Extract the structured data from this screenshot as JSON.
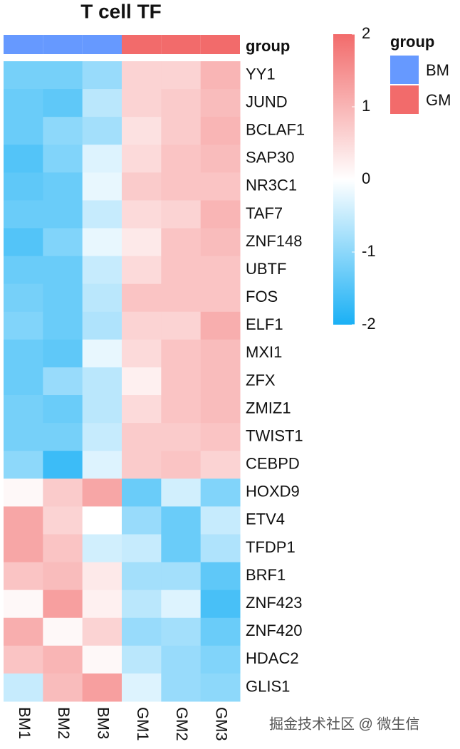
{
  "chart_data": {
    "type": "heatmap",
    "title": "T cell TF",
    "columns": [
      "BM1",
      "BM2",
      "BM3",
      "GM1",
      "GM2",
      "GM3"
    ],
    "rows": [
      "YY1",
      "JUND",
      "BCLAF1",
      "SAP30",
      "NR3C1",
      "TAF7",
      "ZNF148",
      "UBTF",
      "FOS",
      "ELF1",
      "MXI1",
      "ZFX",
      "ZMIZ1",
      "TWIST1",
      "CEBPD",
      "HOXD9",
      "ETV4",
      "TFDP1",
      "BRF1",
      "ZNF423",
      "ZNF420",
      "HDAC2",
      "GLIS1"
    ],
    "values": [
      [
        -1.2,
        -1.2,
        -0.9,
        0.6,
        0.6,
        1.0
      ],
      [
        -1.3,
        -1.4,
        -0.6,
        0.6,
        0.7,
        0.9
      ],
      [
        -1.3,
        -1.0,
        -0.8,
        0.4,
        0.7,
        1.0
      ],
      [
        -1.5,
        -1.1,
        -0.3,
        0.5,
        0.8,
        0.9
      ],
      [
        -1.4,
        -1.3,
        -0.2,
        0.7,
        0.8,
        0.8
      ],
      [
        -1.3,
        -1.3,
        -0.5,
        0.5,
        0.6,
        1.0
      ],
      [
        -1.5,
        -1.1,
        -0.2,
        0.3,
        0.8,
        0.9
      ],
      [
        -1.3,
        -1.3,
        -0.5,
        0.5,
        0.8,
        0.8
      ],
      [
        -1.2,
        -1.3,
        -0.6,
        0.8,
        0.8,
        0.8
      ],
      [
        -1.1,
        -1.3,
        -0.7,
        0.6,
        0.6,
        1.1
      ],
      [
        -1.3,
        -1.4,
        -0.2,
        0.5,
        0.8,
        0.9
      ],
      [
        -1.3,
        -0.9,
        -0.6,
        0.2,
        0.8,
        0.9
      ],
      [
        -1.2,
        -1.3,
        -0.6,
        0.5,
        0.8,
        0.9
      ],
      [
        -1.2,
        -1.2,
        -0.5,
        0.7,
        0.7,
        0.8
      ],
      [
        -1.0,
        -1.7,
        -0.3,
        0.7,
        0.8,
        0.6
      ],
      [
        0.1,
        0.7,
        1.2,
        -1.3,
        -0.4,
        -1.1
      ],
      [
        1.2,
        0.6,
        0.0,
        -0.9,
        -1.3,
        -0.5
      ],
      [
        1.2,
        0.8,
        -0.4,
        -0.5,
        -1.3,
        -0.7
      ],
      [
        0.8,
        0.9,
        0.3,
        -0.8,
        -0.8,
        -1.4
      ],
      [
        0.1,
        1.3,
        0.2,
        -0.6,
        -0.3,
        -1.6
      ],
      [
        1.1,
        0.1,
        0.6,
        -0.9,
        -0.8,
        -1.3
      ],
      [
        0.8,
        1.0,
        0.1,
        -0.6,
        -0.9,
        -1.1
      ],
      [
        -0.5,
        0.9,
        1.3,
        -0.3,
        -0.9,
        -1.0
      ]
    ],
    "colors": {
      "low": "#1ab0f5",
      "mid": "#ffffff",
      "high": "#f26b6b"
    },
    "clim": [
      -2,
      2
    ],
    "cticks": [
      -2,
      -1,
      0,
      1,
      2
    ],
    "annotation": {
      "name": "group",
      "groups": [
        "BM",
        "BM",
        "BM",
        "GM",
        "GM",
        "GM"
      ]
    },
    "legend": {
      "title": "group",
      "entries": [
        {
          "name": "BM",
          "color": "#6699ff"
        },
        {
          "name": "GM",
          "color": "#f26b6b"
        }
      ]
    },
    "watermark": "掘金技术社区 @ 微生信"
  }
}
